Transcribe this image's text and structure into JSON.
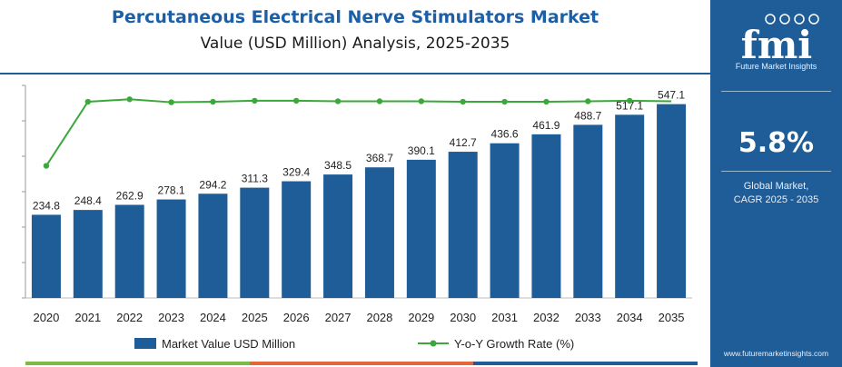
{
  "header": {
    "title": "Percutaneous Electrical Nerve Stimulators Market",
    "subtitle": "Value (USD Million) Analysis, 2025-2035"
  },
  "sidebar": {
    "logo_text": "fmi",
    "tagline": "Future Market Insights",
    "cagr_value": "5.8%",
    "cagr_label_line1": "Global Market,",
    "cagr_label_line2": "CAGR 2025 - 2035",
    "website": "www.futuremarketinsights.com"
  },
  "colors": {
    "bar": "#1f5d98",
    "line": "#3aa83a",
    "sidebar": "#1f5d98",
    "title": "#1d5fa6",
    "strip": [
      "#7dbb45",
      "#e0663c",
      "#1f5d98"
    ]
  },
  "legend": {
    "bar_label": "Market Value USD Million",
    "line_label": "Y-o-Y Growth Rate (%)"
  },
  "chart_data": {
    "type": "bar",
    "categories": [
      "2020",
      "2021",
      "2022",
      "2023",
      "2024",
      "2025",
      "2026",
      "2027",
      "2028",
      "2029",
      "2030",
      "2031",
      "2032",
      "2033",
      "2034",
      "2035"
    ],
    "series": [
      {
        "name": "Market Value USD Million",
        "type": "bar",
        "values": [
          234.8,
          248.4,
          262.9,
          278.1,
          294.2,
          311.3,
          329.4,
          348.5,
          368.7,
          390.1,
          412.7,
          436.6,
          461.9,
          488.7,
          517.1,
          547.1
        ],
        "labels": [
          "234.8",
          "248.4",
          "262.9",
          "278.1",
          "294.2",
          "311.3",
          "329.4",
          "348.5",
          "368.7",
          "390.1",
          "412.7",
          "436.6",
          "461.9",
          "488.7",
          "517.1",
          "547.1"
        ]
      },
      {
        "name": "Y-o-Y Growth Rate (%)",
        "type": "line",
        "values": [
          4.5,
          5.79,
          5.84,
          5.78,
          5.79,
          5.81,
          5.81,
          5.8,
          5.8,
          5.8,
          5.79,
          5.79,
          5.79,
          5.8,
          5.81,
          5.8
        ]
      }
    ],
    "ylim": [
      0,
      600
    ],
    "grid": false,
    "legend_position": "bottom"
  }
}
